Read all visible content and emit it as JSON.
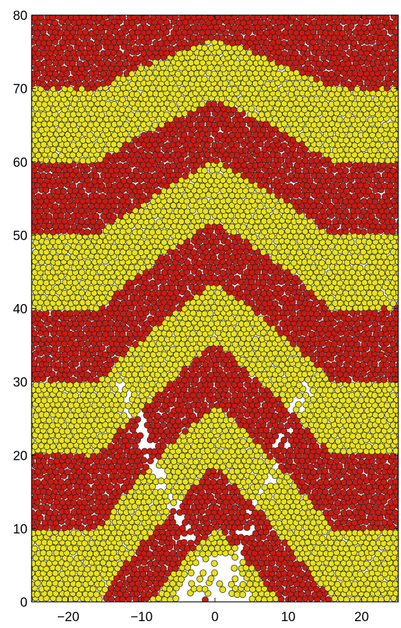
{
  "chart_data": {
    "type": "scatter",
    "title": "",
    "xlabel": "",
    "ylabel": "",
    "xlim": [
      -25,
      25
    ],
    "ylim": [
      0,
      80
    ],
    "grid": false,
    "x_ticks": [
      -20,
      -10,
      0,
      10,
      20
    ],
    "x_tick_labels": [
      "−20",
      "−10",
      "0",
      "10",
      "20"
    ],
    "y_ticks": [
      0,
      10,
      20,
      30,
      40,
      50,
      60,
      70,
      80
    ],
    "y_tick_labels": [
      "0",
      "10",
      "20",
      "30",
      "40",
      "50",
      "60",
      "70",
      "80"
    ],
    "colors": {
      "yellow": "#e8e21a",
      "red": "#cc1a12",
      "edge": "#222222"
    },
    "grain_diameter": 0.8,
    "description_of_pattern": {
      "layer_thickness": 10,
      "bottom_color": "yellow",
      "fold_depth": 14,
      "fold_width": 16,
      "cone_half_angle_deg": 38
    }
  }
}
